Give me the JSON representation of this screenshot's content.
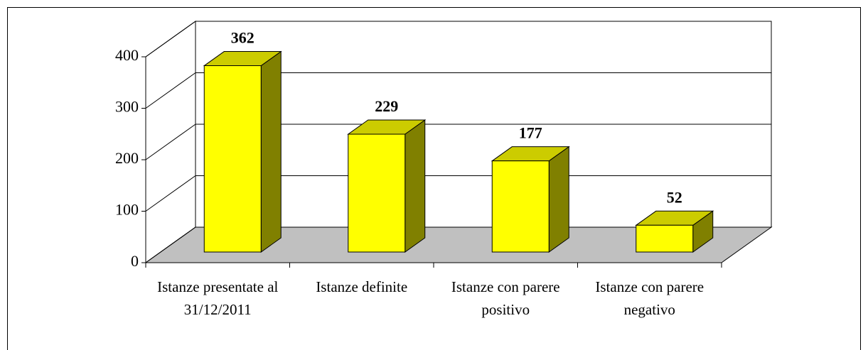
{
  "chart_data": {
    "type": "bar3d",
    "categories": [
      "Istanze presentate al 31/12/2011",
      "Istanze definite",
      "Istanze con parere positivo",
      "Istanze con parere negativo"
    ],
    "values": [
      362,
      229,
      177,
      52
    ],
    "color": "#ffff00",
    "ylim": [
      0,
      400
    ],
    "yticks": [
      0,
      100,
      200,
      300,
      400
    ],
    "grid": true
  }
}
